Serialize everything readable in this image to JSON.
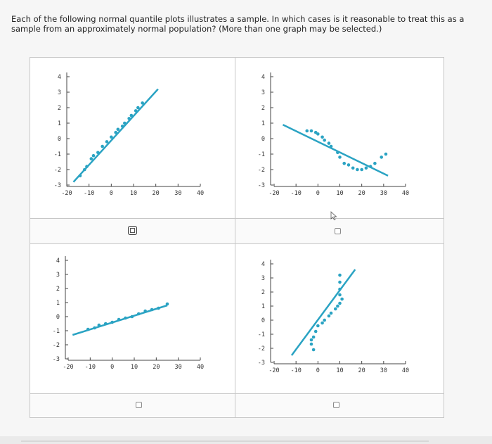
{
  "question": {
    "text": "Each of the following normal quantile plots illustrates a sample. In which cases is it reasonable to treat this as a sample from an approximately normal population? (More than one graph may be selected.)"
  },
  "colors": {
    "accent": "#2aa3c3",
    "axis": "#444444",
    "checkbox_border": "#8a8a8a"
  },
  "options": [
    {
      "id": "option-1",
      "checked": false,
      "focused": true
    },
    {
      "id": "option-2",
      "checked": false,
      "focused": false
    },
    {
      "id": "option-3",
      "checked": false,
      "focused": false
    },
    {
      "id": "option-4",
      "checked": false,
      "focused": false
    }
  ],
  "chart_data": [
    {
      "type": "scatter",
      "title": "",
      "xlabel": "",
      "ylabel": "",
      "xlim": [
        -20,
        40
      ],
      "ylim": [
        -3,
        4
      ],
      "x_ticks": [
        "-20",
        "-10",
        "0",
        "10",
        "20",
        "30",
        "40"
      ],
      "y_ticks": [
        "4",
        "3",
        "2",
        "1",
        "0",
        "-1",
        "-2",
        "-3"
      ],
      "points": [
        [
          -14,
          -2.4
        ],
        [
          -12,
          -2.0
        ],
        [
          -11,
          -1.8
        ],
        [
          -9,
          -1.3
        ],
        [
          -8,
          -1.1
        ],
        [
          -6,
          -0.9
        ],
        [
          -4,
          -0.5
        ],
        [
          -2,
          -0.2
        ],
        [
          0,
          0.1
        ],
        [
          2,
          0.4
        ],
        [
          3,
          0.6
        ],
        [
          5,
          0.8
        ],
        [
          6,
          1.0
        ],
        [
          8,
          1.3
        ],
        [
          9,
          1.5
        ],
        [
          11,
          1.8
        ],
        [
          12,
          2.0
        ],
        [
          14,
          2.3
        ]
      ],
      "fit_line": [
        [
          -17,
          -2.8
        ],
        [
          21,
          3.2
        ]
      ]
    },
    {
      "type": "scatter",
      "title": "",
      "xlabel": "",
      "ylabel": "",
      "xlim": [
        -20,
        40
      ],
      "ylim": [
        -3,
        4
      ],
      "x_ticks": [
        "-20",
        "-10",
        "0",
        "10",
        "20",
        "30",
        "40"
      ],
      "y_ticks": [
        "4",
        "3",
        "2",
        "1",
        "0",
        "-1",
        "-2",
        "-3"
      ],
      "points": [
        [
          -5,
          0.5
        ],
        [
          -3,
          0.5
        ],
        [
          -1,
          0.4
        ],
        [
          0,
          0.3
        ],
        [
          2,
          0.1
        ],
        [
          3,
          -0.1
        ],
        [
          5,
          -0.3
        ],
        [
          6,
          -0.5
        ],
        [
          9,
          -0.9
        ],
        [
          10,
          -1.2
        ],
        [
          12,
          -1.6
        ],
        [
          14,
          -1.7
        ],
        [
          16,
          -1.9
        ],
        [
          18,
          -2.0
        ],
        [
          20,
          -2.0
        ],
        [
          22,
          -1.9
        ],
        [
          24,
          -1.8
        ],
        [
          26,
          -1.6
        ],
        [
          29,
          -1.2
        ],
        [
          31,
          -1.0
        ]
      ],
      "fit_line": [
        [
          -16,
          0.9
        ],
        [
          32,
          -2.4
        ]
      ]
    },
    {
      "type": "scatter",
      "title": "",
      "xlabel": "",
      "ylabel": "",
      "xlim": [
        -20,
        40
      ],
      "ylim": [
        -3,
        4
      ],
      "x_ticks": [
        "-20",
        "-10",
        "0",
        "10",
        "20",
        "30",
        "40"
      ],
      "y_ticks": [
        "4",
        "3",
        "2",
        "1",
        "0",
        "-1",
        "-2",
        "-3"
      ],
      "points": [
        [
          -11,
          -0.9
        ],
        [
          -8,
          -0.8
        ],
        [
          -6,
          -0.6
        ],
        [
          -3,
          -0.5
        ],
        [
          0,
          -0.4
        ],
        [
          3,
          -0.2
        ],
        [
          6,
          -0.1
        ],
        [
          9,
          0.0
        ],
        [
          12,
          0.2
        ],
        [
          15,
          0.4
        ],
        [
          18,
          0.5
        ],
        [
          21,
          0.6
        ],
        [
          25,
          0.9
        ]
      ],
      "fit_line": [
        [
          -18,
          -1.3
        ],
        [
          25,
          0.8
        ]
      ]
    },
    {
      "type": "scatter",
      "title": "",
      "xlabel": "",
      "ylabel": "",
      "xlim": [
        -20,
        40
      ],
      "ylim": [
        -3,
        4
      ],
      "x_ticks": [
        "-20",
        "-10",
        "0",
        "10",
        "20",
        "30",
        "40"
      ],
      "y_ticks": [
        "4",
        "3",
        "2",
        "1",
        "0",
        "-1",
        "-2",
        "-3"
      ],
      "points": [
        [
          -2,
          -2.1
        ],
        [
          -3,
          -1.7
        ],
        [
          -3,
          -1.4
        ],
        [
          -2,
          -1.2
        ],
        [
          -1,
          -0.8
        ],
        [
          0,
          -0.4
        ],
        [
          2,
          -0.2
        ],
        [
          3,
          0.0
        ],
        [
          5,
          0.3
        ],
        [
          6,
          0.5
        ],
        [
          8,
          0.8
        ],
        [
          9,
          1.0
        ],
        [
          10,
          1.2
        ],
        [
          11,
          1.5
        ],
        [
          10,
          1.8
        ],
        [
          10,
          2.2
        ],
        [
          10,
          2.7
        ],
        [
          10,
          3.2
        ]
      ],
      "fit_line": [
        [
          -12,
          -2.5
        ],
        [
          17,
          3.6
        ]
      ]
    }
  ]
}
